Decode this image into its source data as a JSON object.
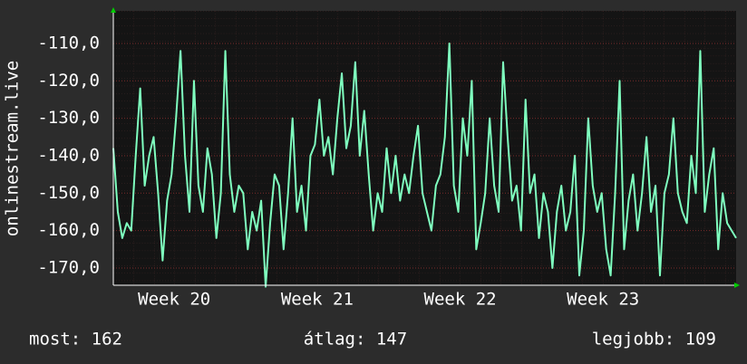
{
  "chart_data": {
    "type": "line",
    "ylabel": "onlinestream.live",
    "values": [
      -138,
      -155,
      -162,
      -158,
      -160,
      -140,
      -122,
      -148,
      -140,
      -135,
      -150,
      -168,
      -152,
      -145,
      -130,
      -112,
      -140,
      -155,
      -120,
      -148,
      -155,
      -138,
      -145,
      -162,
      -150,
      -112,
      -145,
      -155,
      -148,
      -150,
      -165,
      -155,
      -160,
      -152,
      -175,
      -158,
      -145,
      -148,
      -165,
      -150,
      -130,
      -155,
      -148,
      -160,
      -140,
      -137,
      -125,
      -140,
      -135,
      -145,
      -130,
      -118,
      -138,
      -132,
      -115,
      -140,
      -128,
      -145,
      -160,
      -150,
      -155,
      -138,
      -150,
      -140,
      -152,
      -145,
      -150,
      -140,
      -132,
      -150,
      -155,
      -160,
      -148,
      -145,
      -135,
      -110,
      -148,
      -155,
      -130,
      -140,
      -120,
      -165,
      -158,
      -150,
      -130,
      -148,
      -155,
      -115,
      -135,
      -152,
      -148,
      -160,
      -125,
      -150,
      -145,
      -162,
      -150,
      -155,
      -170,
      -155,
      -148,
      -160,
      -155,
      -140,
      -172,
      -160,
      -130,
      -148,
      -155,
      -150,
      -165,
      -172,
      -150,
      -120,
      -165,
      -152,
      -145,
      -160,
      -150,
      -135,
      -155,
      -148,
      -172,
      -150,
      -145,
      -130,
      -150,
      -155,
      -158,
      -140,
      -150,
      -112,
      -155,
      -145,
      -138,
      -165,
      -150,
      -158,
      -160,
      -162
    ],
    "color": "#7fffbf",
    "xlim": [
      0,
      139
    ],
    "xticks": [
      {
        "value": 13.6,
        "label": "Week 20"
      },
      {
        "value": 45.5,
        "label": "Week 21"
      },
      {
        "value": 77.4,
        "label": "Week 22"
      },
      {
        "value": 109.3,
        "label": "Week 23"
      }
    ],
    "ylim": [
      -174.6,
      -101.3
    ],
    "yticks": [
      {
        "value": -170,
        "label": "-170,0"
      },
      {
        "value": -160,
        "label": "-160,0"
      },
      {
        "value": -150,
        "label": "-150,0"
      },
      {
        "value": -140,
        "label": "-140,0"
      },
      {
        "value": -130,
        "label": "-130,0"
      },
      {
        "value": -120,
        "label": "-120,0"
      },
      {
        "value": -110,
        "label": "-110,0"
      }
    ],
    "grid": true,
    "footer": [
      "most: 162",
      "átlag: 147",
      "legjobb: 109"
    ]
  }
}
